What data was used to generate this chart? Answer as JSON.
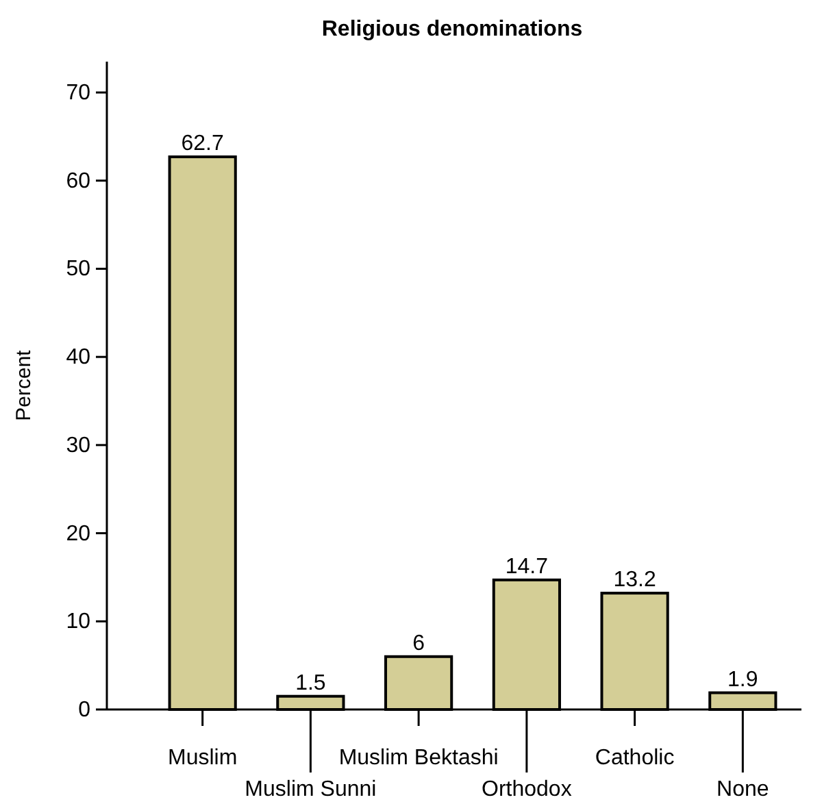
{
  "chart_data": {
    "type": "bar",
    "title": "Religious denominations",
    "ylabel": "Percent",
    "categories": [
      "Muslim",
      "Muslim Sunni",
      "Muslim Bektashi",
      "Orthodox",
      "Catholic",
      "None"
    ],
    "values": [
      62.7,
      1.5,
      6,
      14.7,
      13.2,
      1.9
    ],
    "color": "#d4ce96",
    "ylim": [
      0,
      73.5
    ],
    "yticks": [
      0,
      10,
      20,
      30,
      40,
      50,
      60,
      70
    ],
    "data_labels": true
  }
}
